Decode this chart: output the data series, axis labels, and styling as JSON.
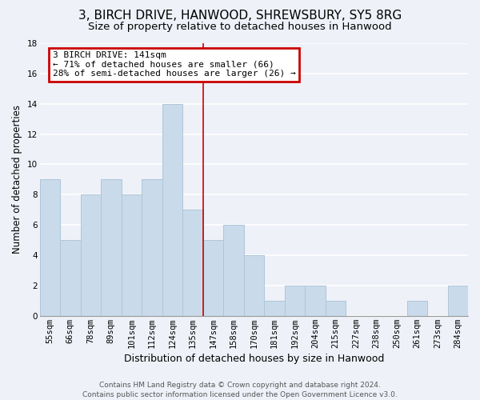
{
  "title": "3, BIRCH DRIVE, HANWOOD, SHREWSBURY, SY5 8RG",
  "subtitle": "Size of property relative to detached houses in Hanwood",
  "xlabel": "Distribution of detached houses by size in Hanwood",
  "ylabel": "Number of detached properties",
  "bar_labels": [
    "55sqm",
    "66sqm",
    "78sqm",
    "89sqm",
    "101sqm",
    "112sqm",
    "124sqm",
    "135sqm",
    "147sqm",
    "158sqm",
    "170sqm",
    "181sqm",
    "192sqm",
    "204sqm",
    "215sqm",
    "227sqm",
    "238sqm",
    "250sqm",
    "261sqm",
    "273sqm",
    "284sqm"
  ],
  "bar_values": [
    9,
    5,
    8,
    9,
    8,
    9,
    14,
    7,
    5,
    6,
    4,
    1,
    2,
    2,
    1,
    0,
    0,
    0,
    1,
    0,
    2
  ],
  "bar_color": "#c9daea",
  "bar_edge_color": "#aec6d8",
  "background_color": "#eef2f8",
  "grid_color": "#ffffff",
  "vline_x": 7.5,
  "vline_color": "#cc0000",
  "annotation_line1": "3 BIRCH DRIVE: 141sqm",
  "annotation_line2": "← 71% of detached houses are smaller (66)",
  "annotation_line3": "28% of semi-detached houses are larger (26) →",
  "annotation_box_color": "#cc0000",
  "footer_line1": "Contains HM Land Registry data © Crown copyright and database right 2024.",
  "footer_line2": "Contains public sector information licensed under the Open Government Licence v3.0.",
  "ylim": [
    0,
    18
  ],
  "yticks": [
    0,
    2,
    4,
    6,
    8,
    10,
    12,
    14,
    16,
    18
  ],
  "title_fontsize": 11,
  "subtitle_fontsize": 9.5,
  "xlabel_fontsize": 9,
  "ylabel_fontsize": 8.5,
  "tick_fontsize": 7.5,
  "annot_fontsize": 8,
  "footer_fontsize": 6.5
}
